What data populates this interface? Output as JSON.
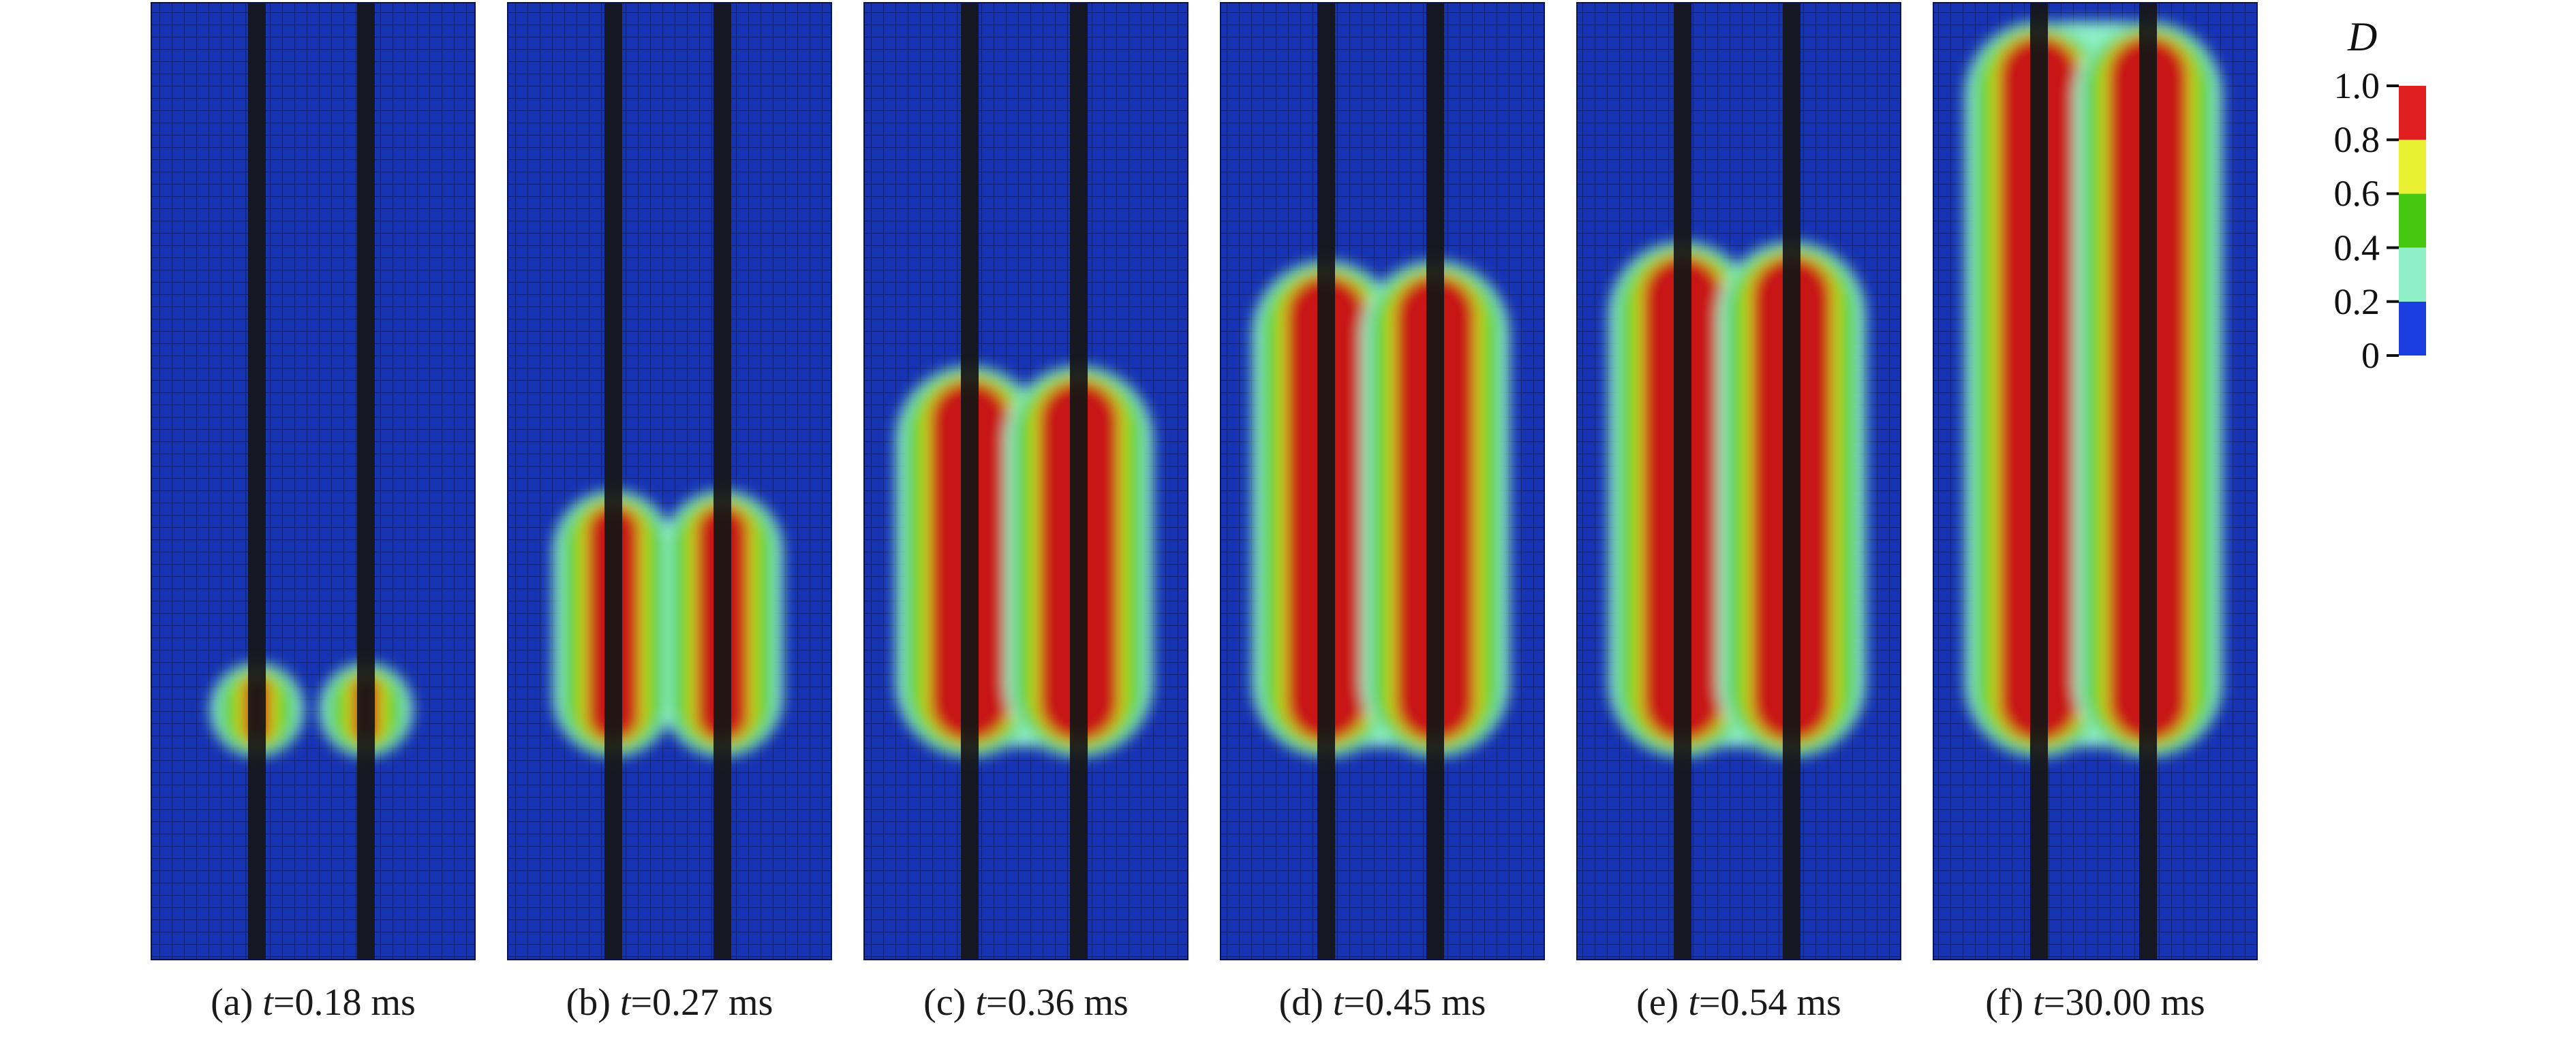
{
  "legend": {
    "title": "D",
    "ticks": [
      {
        "label": "1.0",
        "value": 1.0
      },
      {
        "label": "0.8",
        "value": 0.8
      },
      {
        "label": "0.6",
        "value": 0.6
      },
      {
        "label": "0.4",
        "value": 0.4
      },
      {
        "label": "0.2",
        "value": 0.2
      },
      {
        "label": "0",
        "value": 0.0
      }
    ],
    "bands": [
      {
        "from": 0.0,
        "to": 0.2,
        "color": "#1a3ee0"
      },
      {
        "from": 0.2,
        "to": 0.4,
        "color": "#8ff0c8"
      },
      {
        "from": 0.4,
        "to": 0.6,
        "color": "#46c810"
      },
      {
        "from": 0.6,
        "to": 0.8,
        "color": "#e8f030"
      },
      {
        "from": 0.8,
        "to": 1.0,
        "color": "#e02020"
      }
    ]
  },
  "colors": {
    "background": "#1633b4",
    "mesh_line": "#0b1b66",
    "borehole": "#161616",
    "damage_low": "#8ff0c8",
    "damage_mid": "#46c810",
    "damage_high": "#c81818"
  },
  "panels": [
    {
      "label": "(a)",
      "var": "t",
      "value": "=0.18 ms",
      "crack_top": 0.69,
      "crack_bottom": 0.77,
      "bridge": 0.0
    },
    {
      "label": "(b)",
      "var": "t",
      "value": "=0.27 ms",
      "crack_top": 0.51,
      "crack_bottom": 0.77,
      "bridge": 0.0
    },
    {
      "label": "(c)",
      "var": "t",
      "value": "=0.36 ms",
      "crack_top": 0.38,
      "crack_bottom": 0.77,
      "bridge": 0.45
    },
    {
      "label": "(d)",
      "var": "t",
      "value": "=0.45 ms",
      "crack_top": 0.27,
      "crack_bottom": 0.77,
      "bridge": 0.68
    },
    {
      "label": "(e)",
      "var": "t",
      "value": "=0.54 ms",
      "crack_top": 0.25,
      "crack_bottom": 0.77,
      "bridge": 0.88
    },
    {
      "label": "(f)",
      "var": "t",
      "value": "=30.00 ms",
      "crack_top": 0.02,
      "crack_bottom": 0.77,
      "bridge": 1.0
    }
  ]
}
